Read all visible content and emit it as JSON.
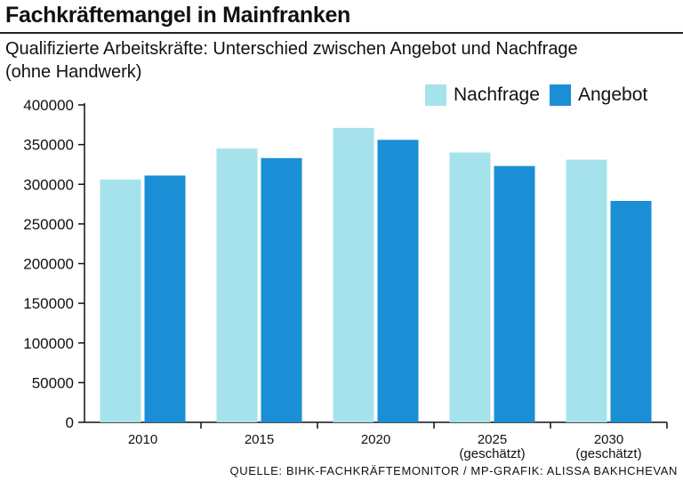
{
  "title": "Fachkräftemangel in Mainfranken",
  "subtitle": "Qualifizierte Arbeitskräfte: Unterschied zwischen Angebot und Nachfrage (ohne Handwerk)",
  "source": "QUELLE: BIHK-FACHKRÄFTEMONITOR / MP-GRAFIK: ALISSA BAKHCHEVAN",
  "legend": [
    {
      "label": "Nachfrage",
      "color": "#a6e2ec"
    },
    {
      "label": "Angebot",
      "color": "#1b8fd6"
    }
  ],
  "chart_data": {
    "type": "bar",
    "categories": [
      [
        "2010"
      ],
      [
        "2015"
      ],
      [
        "2020"
      ],
      [
        "2025",
        "(geschätzt)"
      ],
      [
        "2030",
        "(geschätzt)"
      ]
    ],
    "series": [
      {
        "name": "Nachfrage",
        "color": "#a6e2ec",
        "values": [
          306000,
          345000,
          371000,
          340000,
          331000
        ]
      },
      {
        "name": "Angebot",
        "color": "#1b8fd6",
        "values": [
          311000,
          333000,
          356000,
          323000,
          279000
        ]
      }
    ],
    "yticks": [
      "0",
      "50000",
      "100000",
      "150000",
      "200000",
      "250000",
      "300000",
      "350000",
      "400000"
    ],
    "ylim": [
      0,
      400000
    ],
    "grid": false,
    "legend_position": "top-right"
  }
}
